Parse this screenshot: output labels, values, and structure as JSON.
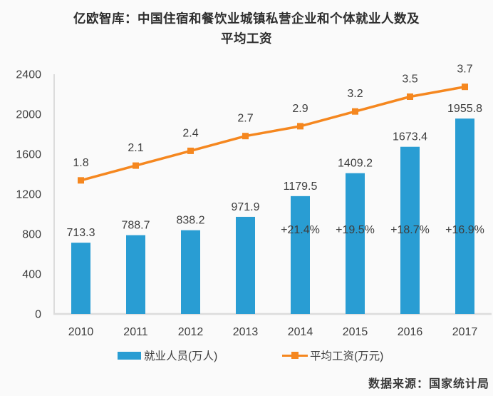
{
  "title": {
    "line1": "亿欧智库：中国住宿和餐饮业城镇私营企业和个体就业人数及",
    "line2": "平均工资"
  },
  "source": "数据来源：国家统计局",
  "colors": {
    "bar": "#299dd3",
    "line": "#f5871f",
    "label_text": "#3d3d3d",
    "axis_line": "#dcdcdc",
    "background": "#fafafa"
  },
  "legend": [
    {
      "label": "就业人员(万人)",
      "type": "bar"
    },
    {
      "label": "平均工资(万元)",
      "type": "line"
    }
  ],
  "chart_data": {
    "type": "bar+line",
    "title": "亿欧智库：中国住宿和餐饮业城镇私营企业和个体就业人数及平均工资",
    "categories": [
      "2010",
      "2011",
      "2012",
      "2013",
      "2014",
      "2015",
      "2016",
      "2017"
    ],
    "series": [
      {
        "name": "就业人员(万人)",
        "type": "bar",
        "values": [
          713.3,
          788.7,
          838.2,
          971.9,
          1179.5,
          1409.2,
          1673.4,
          1955.8
        ]
      },
      {
        "name": "平均工资(万元)",
        "type": "line",
        "values": [
          1.8,
          2.1,
          2.4,
          2.7,
          2.9,
          3.2,
          3.5,
          3.7
        ]
      }
    ],
    "annotations": [
      {
        "category": "2014",
        "text": "+21.4%"
      },
      {
        "category": "2015",
        "text": "+19.5%"
      },
      {
        "category": "2016",
        "text": "+18.7%"
      },
      {
        "category": "2017",
        "text": "+16.9%"
      }
    ],
    "y_axis": {
      "min": 0,
      "max": 2400,
      "ticks": [
        0,
        400,
        800,
        1200,
        1600,
        2000,
        2400
      ]
    },
    "grid": false,
    "legend_position": "bottom"
  }
}
